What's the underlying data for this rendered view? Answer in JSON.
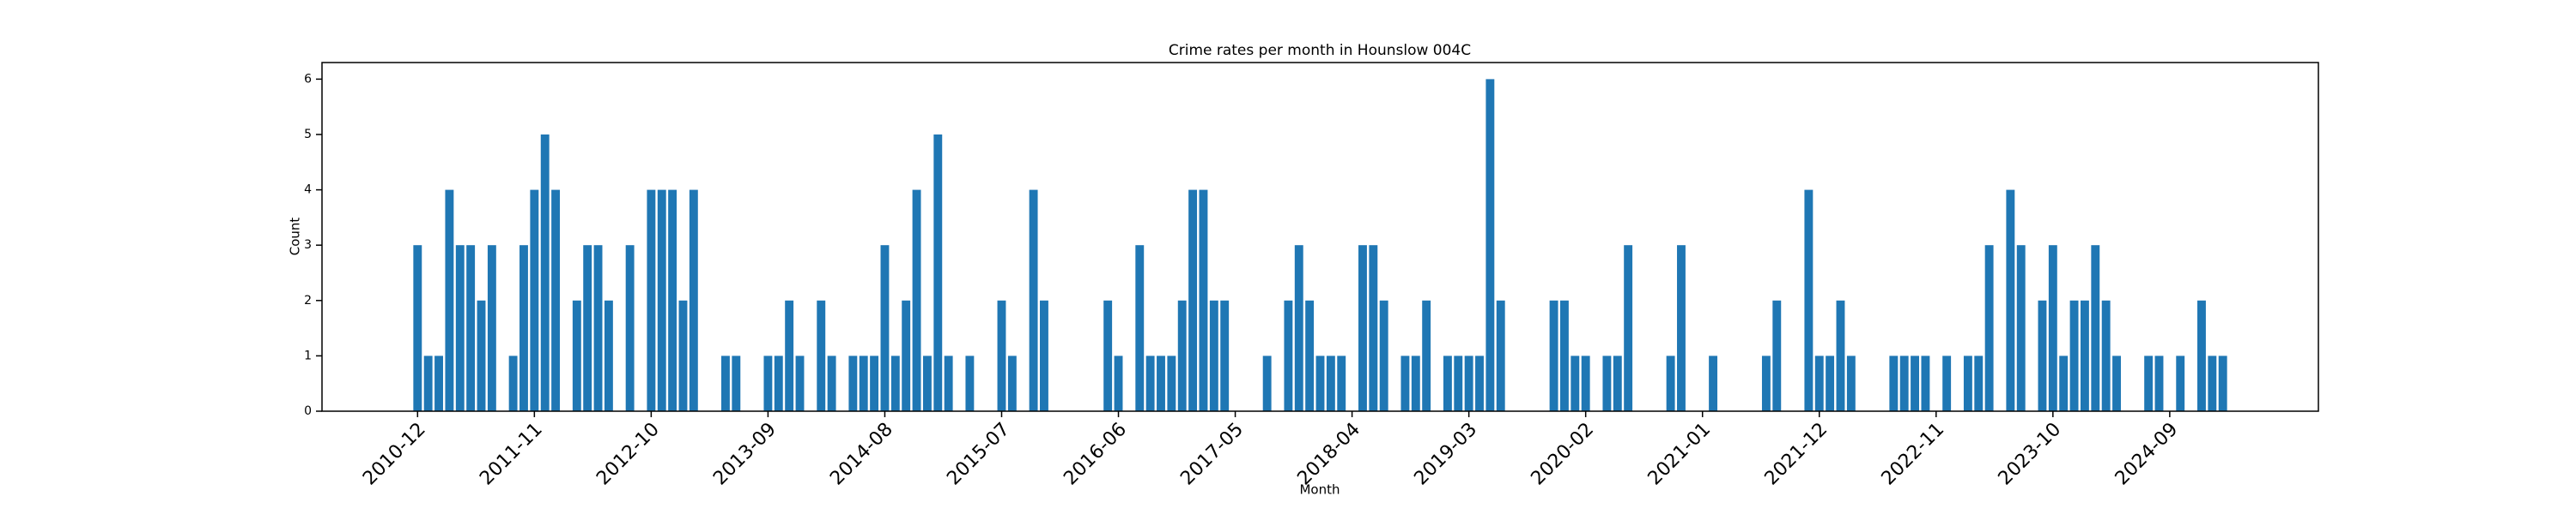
{
  "chart_data": {
    "type": "bar",
    "title": "Crime rates per month in Hounslow 004C",
    "x_label": "Month",
    "y_label": "Count",
    "color": "#1f77b4",
    "x": [
      "2010-12",
      "2011-01",
      "2011-02",
      "2011-03",
      "2011-04",
      "2011-05",
      "2011-06",
      "2011-07",
      "2011-09",
      "2011-10",
      "2011-11",
      "2011-12",
      "2012-01",
      "2012-03",
      "2012-04",
      "2012-05",
      "2012-06",
      "2012-08",
      "2012-10",
      "2012-11",
      "2012-12",
      "2013-01",
      "2013-02",
      "2013-05",
      "2013-06",
      "2013-09",
      "2013-10",
      "2013-11",
      "2013-12",
      "2014-02",
      "2014-03",
      "2014-05",
      "2014-06",
      "2014-07",
      "2014-08",
      "2014-09",
      "2014-10",
      "2014-11",
      "2014-12",
      "2015-01",
      "2015-02",
      "2015-04",
      "2015-07",
      "2015-08",
      "2015-10",
      "2015-11",
      "2016-05",
      "2016-06",
      "2016-08",
      "2016-09",
      "2016-10",
      "2016-11",
      "2016-12",
      "2017-01",
      "2017-02",
      "2017-03",
      "2017-04",
      "2017-08",
      "2017-10",
      "2017-11",
      "2017-12",
      "2018-01",
      "2018-02",
      "2018-03",
      "2018-05",
      "2018-06",
      "2018-07",
      "2018-09",
      "2018-10",
      "2018-11",
      "2019-01",
      "2019-02",
      "2019-03",
      "2019-04",
      "2019-05",
      "2019-06",
      "2019-11",
      "2019-12",
      "2020-01",
      "2020-02",
      "2020-04",
      "2020-05",
      "2020-06",
      "2020-10",
      "2020-11",
      "2021-02",
      "2021-07",
      "2021-08",
      "2021-11",
      "2021-12",
      "2022-01",
      "2022-02",
      "2022-03",
      "2022-07",
      "2022-08",
      "2022-09",
      "2022-10",
      "2022-12",
      "2023-02",
      "2023-03",
      "2023-04",
      "2023-06",
      "2023-07",
      "2023-09",
      "2023-10",
      "2023-11",
      "2023-12",
      "2024-01",
      "2024-02",
      "2024-03",
      "2024-04",
      "2024-07",
      "2024-08",
      "2024-10",
      "2024-12",
      "2025-01",
      "2025-02"
    ],
    "values": [
      3,
      1,
      1,
      4,
      3,
      3,
      2,
      3,
      1,
      3,
      4,
      5,
      4,
      2,
      3,
      3,
      2,
      3,
      4,
      4,
      4,
      2,
      4,
      1,
      1,
      1,
      1,
      2,
      1,
      2,
      1,
      1,
      1,
      1,
      3,
      1,
      2,
      4,
      1,
      5,
      1,
      1,
      2,
      1,
      4,
      2,
      2,
      1,
      3,
      1,
      1,
      1,
      2,
      4,
      4,
      2,
      2,
      1,
      2,
      3,
      2,
      1,
      1,
      1,
      3,
      3,
      2,
      1,
      1,
      2,
      1,
      1,
      1,
      1,
      6,
      2,
      2,
      2,
      1,
      1,
      1,
      1,
      3,
      1,
      3,
      1,
      1,
      2,
      4,
      1,
      1,
      2,
      1,
      1,
      1,
      1,
      1,
      1,
      1,
      1,
      3,
      4,
      3,
      2,
      3,
      1,
      2,
      2,
      3,
      2,
      1,
      1,
      1,
      1,
      2,
      1,
      1
    ],
    "xlim": [
      "2010-03",
      "2025-11"
    ],
    "xticks": [
      "2010-12",
      "2011-11",
      "2012-10",
      "2013-09",
      "2014-08",
      "2015-07",
      "2016-06",
      "2017-05",
      "2018-04",
      "2019-03",
      "2020-02",
      "2021-01",
      "2021-12",
      "2022-11",
      "2023-10",
      "2024-09"
    ],
    "ylim": [
      0,
      6.3
    ],
    "yticks": [
      0,
      1,
      2,
      3,
      4,
      5,
      6
    ]
  }
}
